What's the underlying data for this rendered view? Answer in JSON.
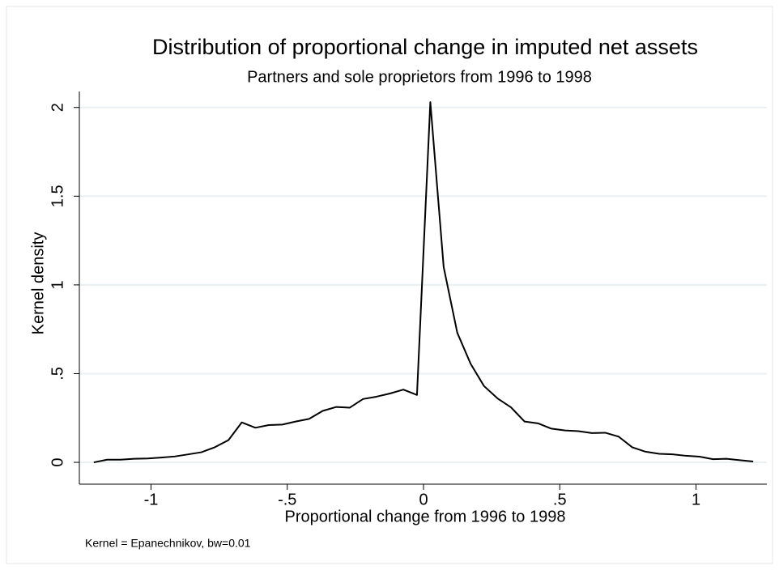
{
  "chart_data": {
    "type": "line",
    "title": "Distribution of proportional change in imputed net assets",
    "subtitle": "Partners and sole proprietors from 1996 to 1998",
    "x_label": "Proportional change from 1996 to 1998",
    "y_label": "Kernel density",
    "note": "Kernel = Epanechnikov, bw=0.01",
    "x": [
      -1.21,
      -1.161,
      -1.112,
      -1.062,
      -1.012,
      -0.963,
      -0.914,
      -0.864,
      -0.815,
      -0.766,
      -0.716,
      -0.667,
      -0.617,
      -0.568,
      -0.518,
      -0.469,
      -0.42,
      -0.37,
      -0.321,
      -0.271,
      -0.222,
      -0.173,
      -0.123,
      -0.074,
      -0.024,
      0.025,
      0.074,
      0.124,
      0.173,
      0.222,
      0.272,
      0.321,
      0.371,
      0.42,
      0.469,
      0.519,
      0.568,
      0.618,
      0.667,
      0.716,
      0.766,
      0.815,
      0.865,
      0.914,
      0.963,
      1.013,
      1.062,
      1.112,
      1.161,
      1.21
    ],
    "values": [
      0.0,
      0.015,
      0.015,
      0.02,
      0.022,
      0.027,
      0.033,
      0.045,
      0.057,
      0.085,
      0.125,
      0.225,
      0.195,
      0.21,
      0.213,
      0.23,
      0.245,
      0.29,
      0.312,
      0.308,
      0.357,
      0.37,
      0.388,
      0.41,
      0.38,
      2.03,
      1.1,
      0.73,
      0.555,
      0.43,
      0.36,
      0.31,
      0.23,
      0.22,
      0.19,
      0.18,
      0.176,
      0.165,
      0.167,
      0.145,
      0.085,
      0.06,
      0.048,
      0.045,
      0.037,
      0.032,
      0.018,
      0.02,
      0.012,
      0.005
    ],
    "color": "#000000",
    "xlim": [
      -1.263,
      1.26
    ],
    "ylim": [
      -0.123,
      2.09
    ],
    "xticks": [
      -1,
      {
        "value": -0.5,
        "label": "-.5"
      },
      0,
      {
        "value": 0.5,
        "label": ".5"
      },
      1
    ],
    "yticks": [
      0,
      {
        "value": 0.5,
        "label": ".5"
      },
      1,
      1.5,
      2
    ],
    "grid": true
  }
}
